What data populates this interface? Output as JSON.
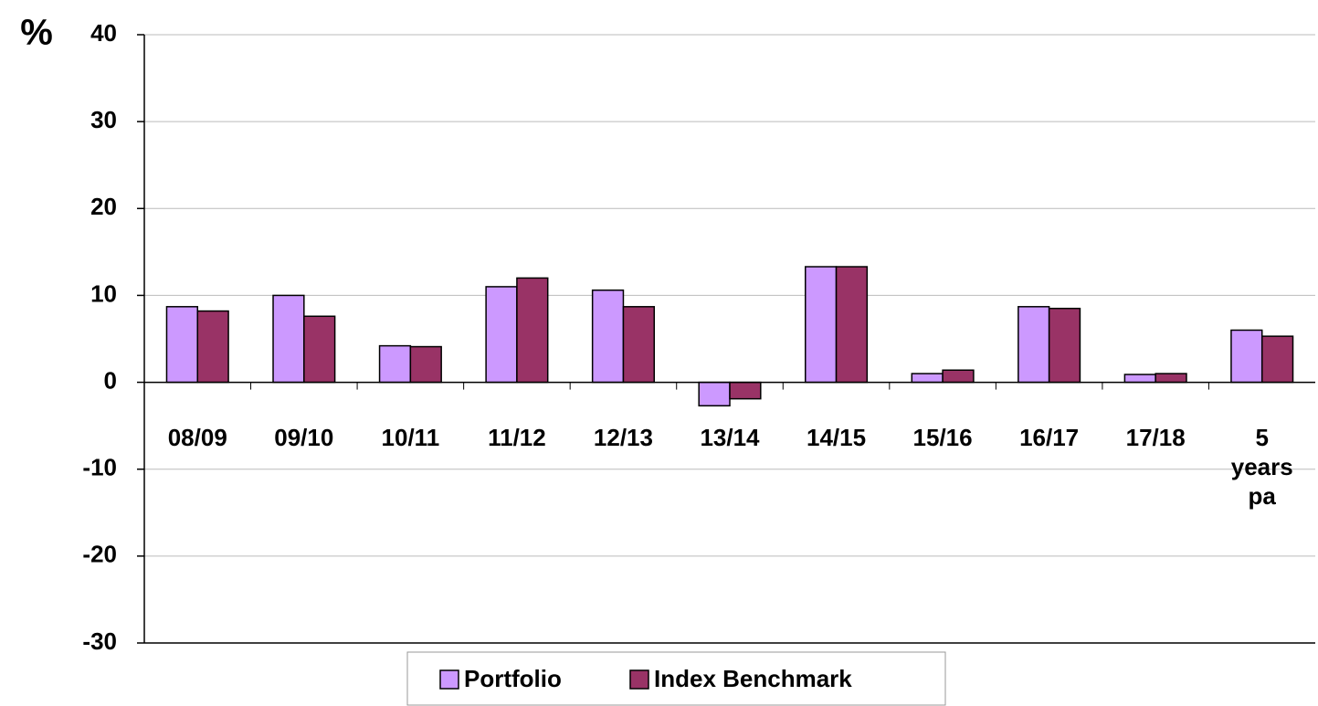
{
  "chart_data": {
    "type": "bar",
    "y_label": "%",
    "categories": [
      "08/09",
      "09/10",
      "10/11",
      "11/12",
      "12/13",
      "13/14",
      "14/15",
      "15/16",
      "16/17",
      "17/18",
      "5 years pa"
    ],
    "series": [
      {
        "name": "Portfolio",
        "color": "#cc99ff",
        "values": [
          8.7,
          10.0,
          4.2,
          11.0,
          10.6,
          -2.7,
          13.3,
          1.0,
          8.7,
          0.9,
          6.0
        ]
      },
      {
        "name": "Index Benchmark",
        "color": "#993366",
        "values": [
          8.2,
          7.6,
          4.1,
          12.0,
          8.7,
          -1.9,
          13.3,
          1.4,
          8.5,
          1.0,
          5.3
        ]
      }
    ],
    "ylim": [
      -30,
      40
    ],
    "yticks": [
      -30,
      -20,
      -10,
      0,
      10,
      20,
      30,
      40
    ],
    "grid": true,
    "legend": "bottom"
  }
}
